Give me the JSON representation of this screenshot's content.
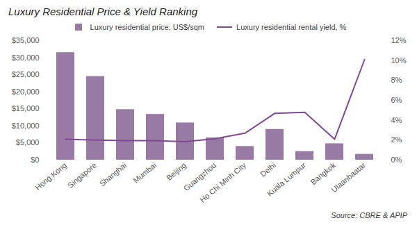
{
  "chart_data": {
    "type": "bar",
    "title": "Luxury Residential Price & Yield Ranking",
    "source": "Source: CBRE & APIP",
    "categories": [
      "Hong Kong",
      "Singapore",
      "Shanghai",
      "Mumbai",
      "Beijing",
      "Guangzhou",
      "Ho Chi Minh City",
      "Delhi",
      "Kuala Lumpur",
      "Bangkok",
      "Ulaanbaatar"
    ],
    "series": [
      {
        "name": "Luxury residential price, US$/sqm",
        "type": "bar",
        "color": "#997aa4",
        "values": [
          31500,
          24500,
          14800,
          13400,
          10900,
          6500,
          4000,
          9000,
          2500,
          4800,
          1700
        ]
      },
      {
        "name": "Luxury residential rental yield, %",
        "type": "line",
        "axis": "y2",
        "color": "#7e4a91",
        "values": [
          2.1,
          2.0,
          1.95,
          1.95,
          1.85,
          2.15,
          2.7,
          4.7,
          4.8,
          2.1,
          10.1
        ]
      }
    ],
    "ylim": [
      0,
      35000
    ],
    "yticks": [
      {
        "value": 0,
        "label": "$0"
      },
      {
        "value": 5000,
        "label": "$5,000"
      },
      {
        "value": 10000,
        "label": "$10,000"
      },
      {
        "value": 15000,
        "label": "$15,000"
      },
      {
        "value": 20000,
        "label": "$20,000"
      },
      {
        "value": 25000,
        "label": "$25,000"
      },
      {
        "value": 30000,
        "label": "$30,000"
      },
      {
        "value": 35000,
        "label": "$35,000"
      }
    ],
    "y2lim": [
      0,
      12
    ],
    "y2ticks": [
      {
        "value": 0,
        "label": "0%"
      },
      {
        "value": 2,
        "label": "2%"
      },
      {
        "value": 4,
        "label": "4%"
      },
      {
        "value": 6,
        "label": "6%"
      },
      {
        "value": 8,
        "label": "8%"
      },
      {
        "value": 10,
        "label": "10%"
      },
      {
        "value": 12,
        "label": "12%"
      }
    ],
    "grid": false,
    "legend": "top"
  }
}
